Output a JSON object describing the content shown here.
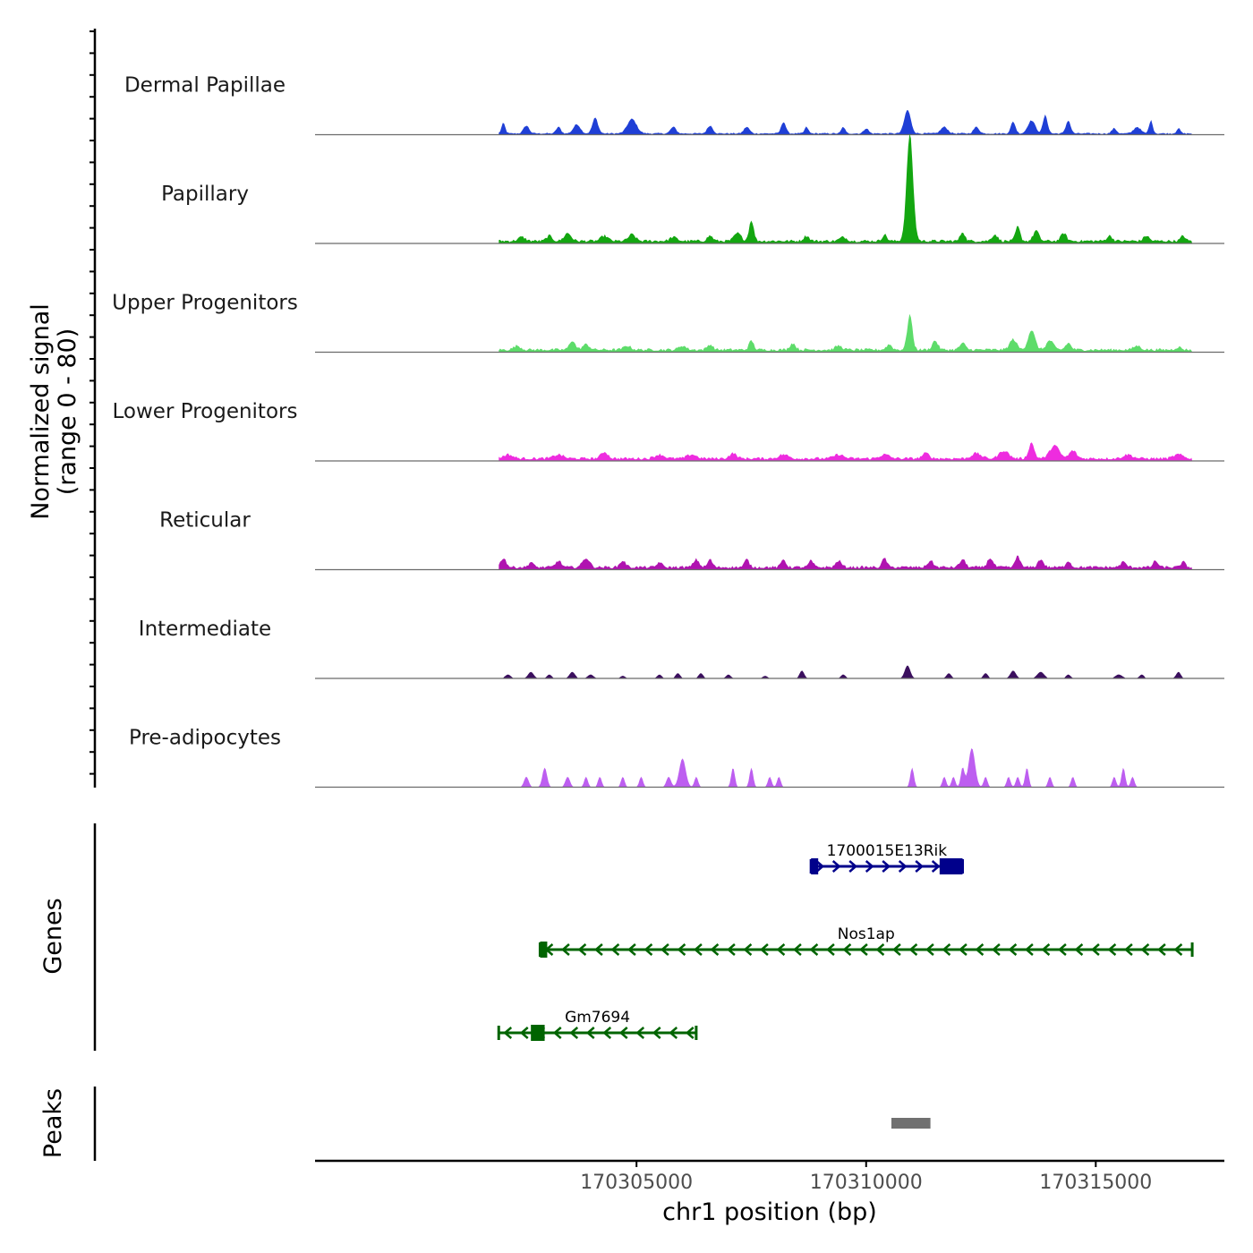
{
  "chart_data": {
    "type": "area",
    "title": "",
    "ylabel_line1": "Normalized signal",
    "ylabel_line2": "(range 0 - 80)",
    "xlabel": "chr1 position (bp)",
    "xlim": [
      170298000,
      170317800
    ],
    "ylim": [
      0,
      80
    ],
    "x_ticks": [
      {
        "value": 170305000,
        "label": "170305000"
      },
      {
        "value": 170310000,
        "label": "170310000"
      },
      {
        "value": 170315000,
        "label": "170315000"
      }
    ],
    "genes_label": "Genes",
    "peaks_label": "Peaks",
    "coverage_start": 170302000,
    "coverage_end": 170317100,
    "series": [
      {
        "name": "Dermal Papillae",
        "color": "#1f3fd6",
        "baseline": 1,
        "peaks": [
          {
            "x": 170302100,
            "h": 8,
            "w": 80
          },
          {
            "x": 170302600,
            "h": 6,
            "w": 120
          },
          {
            "x": 170303300,
            "h": 5,
            "w": 100
          },
          {
            "x": 170303700,
            "h": 7,
            "w": 150
          },
          {
            "x": 170304100,
            "h": 12,
            "w": 120
          },
          {
            "x": 170304900,
            "h": 11,
            "w": 200
          },
          {
            "x": 170305800,
            "h": 5,
            "w": 120
          },
          {
            "x": 170306600,
            "h": 6,
            "w": 120
          },
          {
            "x": 170307400,
            "h": 5,
            "w": 120
          },
          {
            "x": 170308200,
            "h": 9,
            "w": 100
          },
          {
            "x": 170308700,
            "h": 5,
            "w": 80
          },
          {
            "x": 170309500,
            "h": 5,
            "w": 80
          },
          {
            "x": 170310000,
            "h": 4,
            "w": 100
          },
          {
            "x": 170310900,
            "h": 18,
            "w": 140
          },
          {
            "x": 170311700,
            "h": 5,
            "w": 150
          },
          {
            "x": 170312400,
            "h": 5,
            "w": 120
          },
          {
            "x": 170313200,
            "h": 9,
            "w": 100
          },
          {
            "x": 170313600,
            "h": 10,
            "w": 160
          },
          {
            "x": 170313900,
            "h": 14,
            "w": 100
          },
          {
            "x": 170314400,
            "h": 10,
            "w": 100
          },
          {
            "x": 170315400,
            "h": 4,
            "w": 100
          },
          {
            "x": 170315900,
            "h": 5,
            "w": 150
          },
          {
            "x": 170316200,
            "h": 10,
            "w": 80
          },
          {
            "x": 170316800,
            "h": 4,
            "w": 80
          }
        ]
      },
      {
        "name": "Papillary",
        "color": "#13a610",
        "baseline": 2,
        "peaks": [
          {
            "x": 170302500,
            "h": 3,
            "w": 150
          },
          {
            "x": 170303100,
            "h": 4,
            "w": 120
          },
          {
            "x": 170303500,
            "h": 6,
            "w": 150
          },
          {
            "x": 170304300,
            "h": 4,
            "w": 150
          },
          {
            "x": 170304900,
            "h": 5,
            "w": 150
          },
          {
            "x": 170305800,
            "h": 3,
            "w": 150
          },
          {
            "x": 170306600,
            "h": 4,
            "w": 120
          },
          {
            "x": 170307200,
            "h": 6,
            "w": 150
          },
          {
            "x": 170307500,
            "h": 16,
            "w": 100
          },
          {
            "x": 170308700,
            "h": 4,
            "w": 120
          },
          {
            "x": 170309500,
            "h": 3,
            "w": 150
          },
          {
            "x": 170310400,
            "h": 5,
            "w": 100
          },
          {
            "x": 170310950,
            "h": 82,
            "w": 140
          },
          {
            "x": 170312100,
            "h": 7,
            "w": 100
          },
          {
            "x": 170312800,
            "h": 5,
            "w": 120
          },
          {
            "x": 170313300,
            "h": 11,
            "w": 100
          },
          {
            "x": 170313700,
            "h": 8,
            "w": 120
          },
          {
            "x": 170314300,
            "h": 6,
            "w": 120
          },
          {
            "x": 170315300,
            "h": 4,
            "w": 120
          },
          {
            "x": 170316100,
            "h": 4,
            "w": 120
          },
          {
            "x": 170316900,
            "h": 4,
            "w": 100
          }
        ]
      },
      {
        "name": "Upper Progenitors",
        "color": "#5ddc6a",
        "baseline": 2,
        "peaks": [
          {
            "x": 170302400,
            "h": 3,
            "w": 150
          },
          {
            "x": 170303600,
            "h": 7,
            "w": 120
          },
          {
            "x": 170303900,
            "h": 4,
            "w": 150
          },
          {
            "x": 170304800,
            "h": 3,
            "w": 150
          },
          {
            "x": 170306000,
            "h": 3,
            "w": 150
          },
          {
            "x": 170306600,
            "h": 4,
            "w": 120
          },
          {
            "x": 170307500,
            "h": 7,
            "w": 100
          },
          {
            "x": 170308400,
            "h": 5,
            "w": 120
          },
          {
            "x": 170309400,
            "h": 3,
            "w": 150
          },
          {
            "x": 170310500,
            "h": 4,
            "w": 120
          },
          {
            "x": 170310950,
            "h": 27,
            "w": 110
          },
          {
            "x": 170311500,
            "h": 7,
            "w": 120
          },
          {
            "x": 170312100,
            "h": 5,
            "w": 120
          },
          {
            "x": 170313200,
            "h": 8,
            "w": 150
          },
          {
            "x": 170313600,
            "h": 15,
            "w": 150
          },
          {
            "x": 170314000,
            "h": 7,
            "w": 150
          },
          {
            "x": 170314400,
            "h": 5,
            "w": 120
          },
          {
            "x": 170315900,
            "h": 3,
            "w": 150
          },
          {
            "x": 170316800,
            "h": 2,
            "w": 120
          }
        ]
      },
      {
        "name": "Lower Progenitors",
        "color": "#ee2cdf",
        "baseline": 2,
        "peaks": [
          {
            "x": 170302200,
            "h": 3,
            "w": 200
          },
          {
            "x": 170303300,
            "h": 3,
            "w": 200
          },
          {
            "x": 170304300,
            "h": 5,
            "w": 150
          },
          {
            "x": 170305500,
            "h": 3,
            "w": 200
          },
          {
            "x": 170306200,
            "h": 3,
            "w": 200
          },
          {
            "x": 170307100,
            "h": 4,
            "w": 150
          },
          {
            "x": 170308200,
            "h": 3,
            "w": 200
          },
          {
            "x": 170309400,
            "h": 3,
            "w": 200
          },
          {
            "x": 170310400,
            "h": 3,
            "w": 200
          },
          {
            "x": 170311300,
            "h": 4,
            "w": 150
          },
          {
            "x": 170312400,
            "h": 4,
            "w": 200
          },
          {
            "x": 170313000,
            "h": 6,
            "w": 200
          },
          {
            "x": 170313600,
            "h": 12,
            "w": 120
          },
          {
            "x": 170314100,
            "h": 10,
            "w": 200
          },
          {
            "x": 170314500,
            "h": 6,
            "w": 150
          },
          {
            "x": 170315700,
            "h": 3,
            "w": 200
          },
          {
            "x": 170316800,
            "h": 3,
            "w": 200
          }
        ]
      },
      {
        "name": "Reticular",
        "color": "#b013b0",
        "baseline": 2,
        "peaks": [
          {
            "x": 170302100,
            "h": 7,
            "w": 120
          },
          {
            "x": 170302700,
            "h": 4,
            "w": 100
          },
          {
            "x": 170303300,
            "h": 5,
            "w": 120
          },
          {
            "x": 170303900,
            "h": 7,
            "w": 150
          },
          {
            "x": 170304700,
            "h": 5,
            "w": 120
          },
          {
            "x": 170305500,
            "h": 4,
            "w": 100
          },
          {
            "x": 170306300,
            "h": 6,
            "w": 120
          },
          {
            "x": 170306600,
            "h": 6,
            "w": 100
          },
          {
            "x": 170307400,
            "h": 6,
            "w": 100
          },
          {
            "x": 170308200,
            "h": 6,
            "w": 100
          },
          {
            "x": 170308800,
            "h": 5,
            "w": 100
          },
          {
            "x": 170309400,
            "h": 5,
            "w": 120
          },
          {
            "x": 170310400,
            "h": 7,
            "w": 100
          },
          {
            "x": 170311400,
            "h": 5,
            "w": 120
          },
          {
            "x": 170312100,
            "h": 6,
            "w": 120
          },
          {
            "x": 170312700,
            "h": 7,
            "w": 120
          },
          {
            "x": 170313300,
            "h": 9,
            "w": 100
          },
          {
            "x": 170313800,
            "h": 6,
            "w": 120
          },
          {
            "x": 170314400,
            "h": 5,
            "w": 100
          },
          {
            "x": 170315600,
            "h": 4,
            "w": 120
          },
          {
            "x": 170316300,
            "h": 5,
            "w": 100
          },
          {
            "x": 170316900,
            "h": 4,
            "w": 100
          }
        ]
      },
      {
        "name": "Intermediate",
        "color": "#3b0f5e",
        "baseline": 0,
        "peaks": [
          {
            "x": 170302200,
            "h": 3,
            "w": 120
          },
          {
            "x": 170302700,
            "h": 5,
            "w": 120
          },
          {
            "x": 170303100,
            "h": 3,
            "w": 100
          },
          {
            "x": 170303600,
            "h": 5,
            "w": 120
          },
          {
            "x": 170304000,
            "h": 3,
            "w": 120
          },
          {
            "x": 170304700,
            "h": 2,
            "w": 100
          },
          {
            "x": 170305500,
            "h": 3,
            "w": 100
          },
          {
            "x": 170305900,
            "h": 4,
            "w": 100
          },
          {
            "x": 170306400,
            "h": 4,
            "w": 100
          },
          {
            "x": 170307000,
            "h": 3,
            "w": 100
          },
          {
            "x": 170307800,
            "h": 2,
            "w": 100
          },
          {
            "x": 170308600,
            "h": 6,
            "w": 100
          },
          {
            "x": 170309500,
            "h": 3,
            "w": 100
          },
          {
            "x": 170310900,
            "h": 10,
            "w": 120
          },
          {
            "x": 170311800,
            "h": 4,
            "w": 100
          },
          {
            "x": 170312600,
            "h": 4,
            "w": 100
          },
          {
            "x": 170313200,
            "h": 6,
            "w": 120
          },
          {
            "x": 170313800,
            "h": 5,
            "w": 150
          },
          {
            "x": 170314400,
            "h": 3,
            "w": 100
          },
          {
            "x": 170315500,
            "h": 3,
            "w": 150
          },
          {
            "x": 170316000,
            "h": 3,
            "w": 100
          },
          {
            "x": 170316800,
            "h": 5,
            "w": 100
          }
        ]
      },
      {
        "name": "Pre-adipocytes",
        "color": "#bd5ef0",
        "baseline": 0,
        "peaks": [
          {
            "x": 170302600,
            "h": 8,
            "w": 100
          },
          {
            "x": 170303000,
            "h": 15,
            "w": 100
          },
          {
            "x": 170303500,
            "h": 8,
            "w": 100
          },
          {
            "x": 170303900,
            "h": 8,
            "w": 80
          },
          {
            "x": 170304200,
            "h": 8,
            "w": 80
          },
          {
            "x": 170304700,
            "h": 8,
            "w": 80
          },
          {
            "x": 170305100,
            "h": 8,
            "w": 80
          },
          {
            "x": 170305700,
            "h": 8,
            "w": 100
          },
          {
            "x": 170306000,
            "h": 22,
            "w": 140
          },
          {
            "x": 170306300,
            "h": 8,
            "w": 80
          },
          {
            "x": 170307100,
            "h": 15,
            "w": 80
          },
          {
            "x": 170307500,
            "h": 15,
            "w": 80
          },
          {
            "x": 170307900,
            "h": 8,
            "w": 80
          },
          {
            "x": 170308100,
            "h": 8,
            "w": 80
          },
          {
            "x": 170311000,
            "h": 15,
            "w": 80
          },
          {
            "x": 170311700,
            "h": 8,
            "w": 80
          },
          {
            "x": 170311900,
            "h": 8,
            "w": 80
          },
          {
            "x": 170312100,
            "h": 15,
            "w": 80
          },
          {
            "x": 170312300,
            "h": 30,
            "w": 140
          },
          {
            "x": 170312600,
            "h": 8,
            "w": 80
          },
          {
            "x": 170313100,
            "h": 8,
            "w": 80
          },
          {
            "x": 170313300,
            "h": 8,
            "w": 80
          },
          {
            "x": 170313500,
            "h": 15,
            "w": 80
          },
          {
            "x": 170314000,
            "h": 8,
            "w": 80
          },
          {
            "x": 170314500,
            "h": 8,
            "w": 80
          },
          {
            "x": 170315400,
            "h": 8,
            "w": 80
          },
          {
            "x": 170315600,
            "h": 15,
            "w": 80
          },
          {
            "x": 170315800,
            "h": 8,
            "w": 80
          }
        ]
      }
    ],
    "genes": [
      {
        "name": "1700015E13Rik",
        "strand": "+",
        "start": 170308800,
        "end": 170312100,
        "color": "#00008b",
        "exons": [
          [
            170308800,
            170308950
          ],
          [
            170311600,
            170312100
          ]
        ]
      },
      {
        "name": "Nos1ap",
        "strand": "-",
        "start": 170302900,
        "end": 170317100,
        "color": "#006400",
        "exons": [
          [
            170302900,
            170303000
          ]
        ]
      },
      {
        "name": "Gm7694",
        "strand": "-",
        "start": 170302000,
        "end": 170306300,
        "color": "#006400",
        "exons": [
          [
            170302700,
            170303000
          ]
        ]
      }
    ],
    "peak_regions": [
      {
        "start": 170310550,
        "end": 170311400,
        "color": "#707070"
      }
    ]
  }
}
